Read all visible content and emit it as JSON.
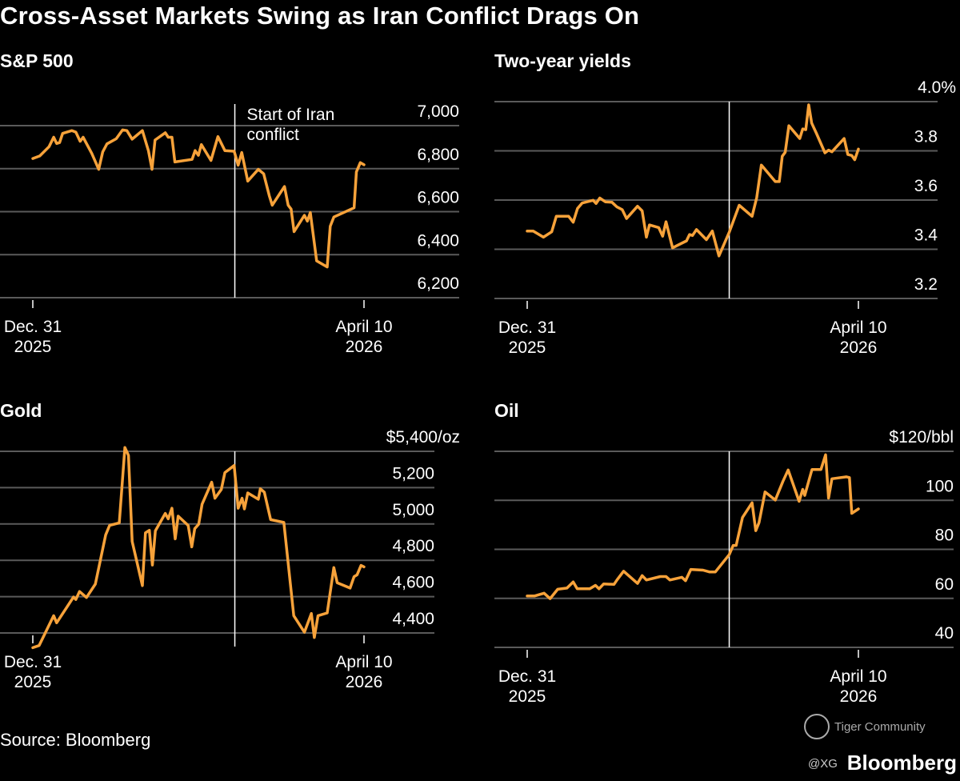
{
  "title": "Cross-Asset Markets Swing as Iran Conflict Drags On",
  "source": "Source: Bloomberg",
  "brand": "Bloomberg",
  "watermark": "Tiger Community",
  "handle": "@XG",
  "colors": {
    "line": "#f7a23a",
    "grid": "#5a5a5a",
    "background": "#000000",
    "text": "#ffffff"
  },
  "chart_data": [
    {
      "type": "line",
      "title": "S&P 500",
      "x_unit": "days since Dec. 31 2025",
      "xlim": [
        0,
        100
      ],
      "ylim": [
        6200,
        7000
      ],
      "yticks": [
        7000,
        6800,
        6600,
        6400,
        6200
      ],
      "ytick_labels": [
        "7,000",
        "6,800",
        "6,600",
        "6,400",
        "6,200"
      ],
      "xtick_labels": [
        [
          "Dec. 31",
          "2025"
        ],
        [
          "April 10",
          "2026"
        ]
      ],
      "xticks": [
        0,
        100
      ],
      "event": {
        "x": 61,
        "label": [
          "Start of Iran",
          "conflict"
        ]
      },
      "x": [
        0,
        2.1,
        4.9,
        6.3,
        7.2,
        8.1,
        9,
        11.8,
        13,
        14.3,
        15.2,
        17.8,
        19.9,
        21.1,
        22.4,
        25.2,
        27.1,
        28.4,
        30,
        33.1,
        34.9,
        36,
        36.9,
        40,
        40.9,
        42,
        42.9,
        48.1,
        49,
        50,
        50.9,
        53.8,
        55.9,
        58,
        60.8,
        62,
        63.1,
        64.9,
        68.1,
        69.7,
        71.4,
        72.3,
        76,
        77.1,
        78,
        78.9,
        82,
        82.9,
        83.8,
        85.7,
        88.9,
        89.8,
        90.9,
        97,
        97.7,
        98.9,
        100
      ],
      "y": [
        6847,
        6859,
        6902,
        6946,
        6917,
        6921,
        6964,
        6977,
        6970,
        6927,
        6946,
        6871,
        6797,
        6878,
        6915,
        6939,
        6980,
        6977,
        6937,
        6977,
        6884,
        6797,
        6933,
        6967,
        6946,
        6946,
        6831,
        6843,
        6884,
        6862,
        6912,
        6838,
        6949,
        6884,
        6881,
        6816,
        6875,
        6742,
        6797,
        6776,
        6674,
        6630,
        6717,
        6630,
        6612,
        6507,
        6583,
        6556,
        6596,
        6371,
        6343,
        6532,
        6575,
        6618,
        6785,
        6828,
        6818
      ]
    },
    {
      "type": "line",
      "title": "Two-year yields",
      "x_unit": "days since Dec. 31 2025",
      "xlim": [
        0,
        100
      ],
      "ylim": [
        3.2,
        4.0
      ],
      "yticks": [
        4.0,
        3.8,
        3.6,
        3.4,
        3.2
      ],
      "ytick_labels": [
        "4.0%",
        "3.8",
        "3.6",
        "3.4",
        "3.2"
      ],
      "xtick_labels": [
        [
          "Dec. 31",
          "2025"
        ],
        [
          "April 10",
          "2026"
        ]
      ],
      "xticks": [
        0,
        100
      ],
      "event": {
        "x": 61,
        "label": []
      },
      "x": [
        0,
        1.8,
        4.9,
        7.4,
        8.8,
        12.5,
        13.9,
        15.2,
        16.6,
        19.9,
        20.8,
        21.9,
        23.6,
        25.6,
        27.1,
        28.7,
        30,
        33.3,
        34.7,
        36,
        36.9,
        39.7,
        40.9,
        41.9,
        43.9,
        48.1,
        49,
        49.9,
        51.1,
        54.1,
        55.9,
        57.9,
        61,
        64,
        67.9,
        69.3,
        70.7,
        74.9,
        76.1,
        77,
        77.9,
        79,
        82.3,
        83.2,
        84.1,
        85,
        85.9,
        87.3,
        89.9,
        91,
        92,
        95.7,
        96.8,
        98,
        98.9,
        100
      ],
      "y": [
        3.474,
        3.474,
        3.449,
        3.471,
        3.534,
        3.534,
        3.51,
        3.566,
        3.588,
        3.599,
        3.586,
        3.608,
        3.593,
        3.591,
        3.572,
        3.561,
        3.525,
        3.575,
        3.556,
        3.449,
        3.499,
        3.488,
        3.453,
        3.512,
        3.406,
        3.434,
        3.46,
        3.456,
        3.48,
        3.439,
        3.474,
        3.373,
        3.469,
        3.579,
        3.534,
        3.61,
        3.742,
        3.675,
        3.675,
        3.778,
        3.794,
        3.902,
        3.85,
        3.889,
        3.886,
        3.987,
        3.913,
        3.872,
        3.792,
        3.803,
        3.796,
        3.85,
        3.785,
        3.781,
        3.764,
        3.807
      ]
    },
    {
      "type": "line",
      "title": "Gold",
      "x_unit": "days since Dec. 31 2025",
      "xlim": [
        0,
        100
      ],
      "ylim": [
        4300,
        5400
      ],
      "yticks": [
        5400,
        5200,
        5000,
        4800,
        4600,
        4400
      ],
      "ytick_labels": [
        "$5,400/oz",
        "5,200",
        "5,000",
        "4,800",
        "4,600",
        "4,400"
      ],
      "xtick_labels": [
        [
          "Dec. 31",
          "2025"
        ],
        [
          "April 10",
          "2026"
        ]
      ],
      "xticks": [
        0,
        100
      ],
      "event": {
        "x": 61,
        "label": []
      },
      "x": [
        0,
        1.9,
        6.3,
        7.2,
        12.3,
        13,
        14.1,
        16.2,
        18.9,
        22,
        23.2,
        26.1,
        27.8,
        28.9,
        30,
        33.1,
        34,
        35.2,
        36.1,
        37,
        40,
        40.9,
        42,
        43,
        43.9,
        46.9,
        48,
        48.9,
        50.1,
        51.1,
        54,
        55,
        56.9,
        58,
        60.8,
        62,
        63.2,
        63.9,
        64.9,
        68.1,
        68.7,
        69.9,
        71.8,
        75.8,
        78.8,
        82,
        84.1,
        85,
        86.1,
        88.9,
        90.9,
        91.9,
        95.8,
        97,
        97.9,
        99.1,
        100
      ],
      "y": [
        4319,
        4331,
        4495,
        4456,
        4598,
        4584,
        4628,
        4595,
        4669,
        4940,
        4992,
        5006,
        5421,
        5377,
        4904,
        4661,
        4951,
        4965,
        4774,
        4962,
        5058,
        5028,
        5087,
        4918,
        5043,
        4992,
        4874,
        4974,
        4999,
        5109,
        5230,
        5142,
        5190,
        5283,
        5322,
        5087,
        5142,
        5083,
        5171,
        5136,
        5194,
        5175,
        5024,
        5009,
        4495,
        4404,
        4507,
        4375,
        4495,
        4510,
        4760,
        4676,
        4647,
        4710,
        4720,
        4772,
        4764
      ]
    },
    {
      "type": "line",
      "title": "Oil",
      "x_unit": "days since Dec. 31 2025",
      "xlim": [
        0,
        100
      ],
      "ylim": [
        40,
        120
      ],
      "yticks": [
        120,
        100,
        80,
        60,
        40
      ],
      "ytick_labels": [
        "$120/bbl",
        "100",
        "80",
        "60",
        "40"
      ],
      "xtick_labels": [
        [
          "Dec. 31",
          "2025"
        ],
        [
          "April 10",
          "2026"
        ]
      ],
      "xticks": [
        0,
        100
      ],
      "event": {
        "x": 61,
        "label": []
      },
      "x": [
        0,
        2.3,
        5.1,
        6.9,
        9.2,
        12,
        13.9,
        15.1,
        18.9,
        20.6,
        21.7,
        23.1,
        26.2,
        27.1,
        29.1,
        33.3,
        34.7,
        36,
        40.2,
        41.9,
        43.1,
        46.7,
        47.8,
        49.4,
        53.1,
        55,
        56.8,
        61,
        62.2,
        63.1,
        65,
        67.9,
        69,
        70,
        71.8,
        74.9,
        77.2,
        78.8,
        82.1,
        83.2,
        83.8,
        86,
        88.7,
        90.1,
        91,
        92,
        96.4,
        97.3,
        98,
        100
      ],
      "y": [
        61,
        61,
        62.1,
        59.9,
        63.7,
        64.2,
        66.7,
        63.9,
        63.9,
        65.3,
        63.9,
        65.9,
        65.7,
        67.5,
        71.1,
        66.1,
        69.3,
        67.5,
        68.9,
        68.9,
        67.5,
        68.6,
        67.2,
        71.8,
        71.5,
        70.8,
        70.8,
        77.8,
        81.6,
        81.6,
        93,
        99,
        87.6,
        90.9,
        103.4,
        100.1,
        107.7,
        112.4,
        99.6,
        104.5,
        102,
        112.6,
        112.6,
        118.6,
        100.9,
        108.8,
        109.6,
        109.3,
        94.7,
        96.5
      ]
    }
  ]
}
